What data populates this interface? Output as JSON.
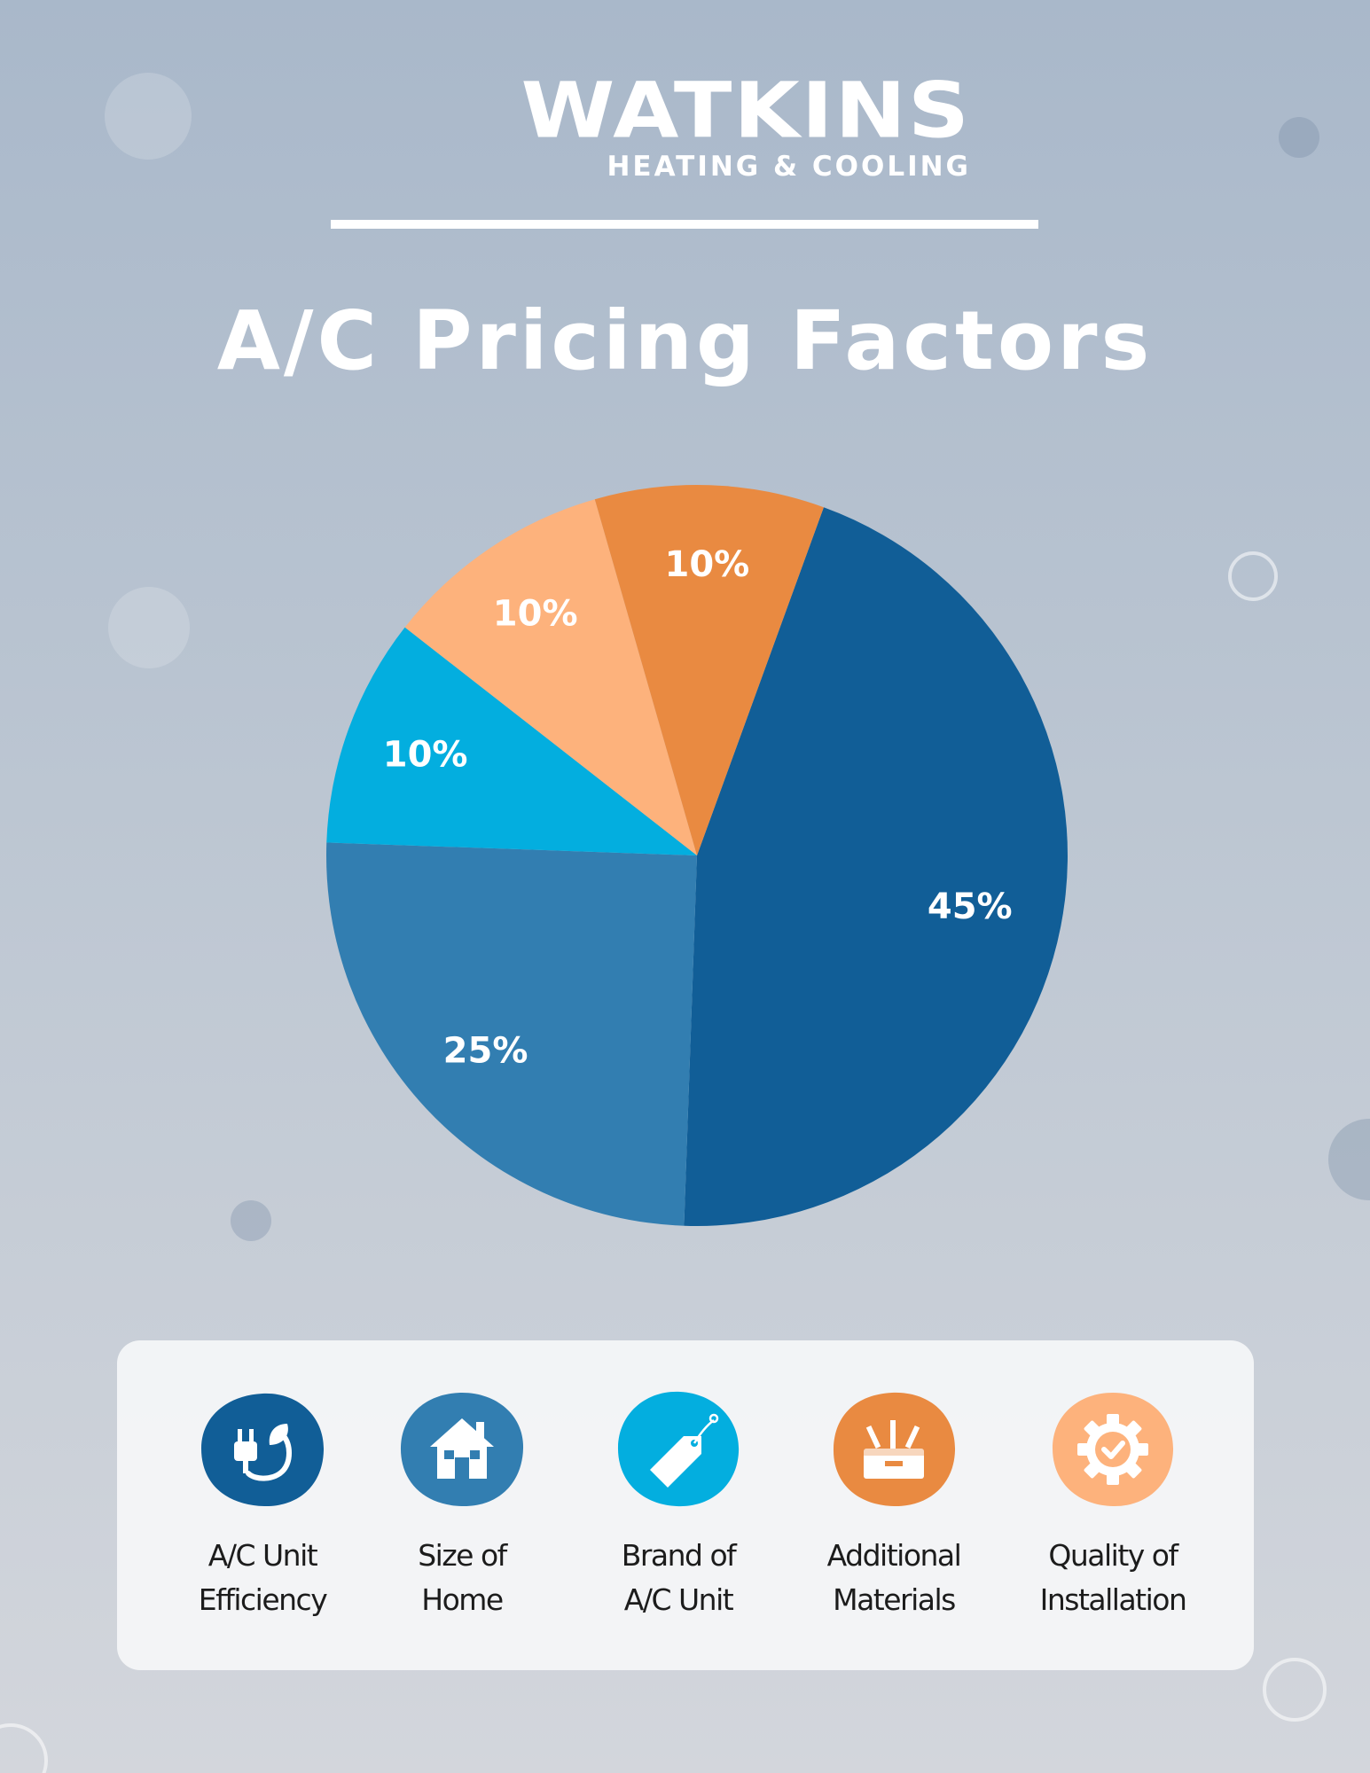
{
  "logo": {
    "name": "WATKINS",
    "tagline": "HEATING & COOLING"
  },
  "title": "A/C Pricing Factors",
  "colors": {
    "dark_blue": "#115e97",
    "mid_blue": "#327eb1",
    "bright_blue": "#03aedf",
    "light_orange": "#fdb27c",
    "orange": "#e98a41"
  },
  "chart_data": {
    "type": "pie",
    "title": "A/C Pricing Factors",
    "legend_position": "bottom",
    "slices": [
      {
        "label": "A/C Unit Efficiency",
        "value": 45,
        "display": "45%",
        "color": "#115e97",
        "icon": "plug-leaf-icon"
      },
      {
        "label": "Size of Home",
        "value": 25,
        "display": "25%",
        "color": "#327eb1",
        "icon": "house-icon"
      },
      {
        "label": "Brand of A/C Unit",
        "value": 10,
        "display": "10%",
        "color": "#03aedf",
        "icon": "price-tag-icon"
      },
      {
        "label": "Quality of Installation",
        "value": 10,
        "display": "10%",
        "color": "#fdb27c",
        "icon": "gear-check-icon"
      },
      {
        "label": "Additional Materials",
        "value": 10,
        "display": "10%",
        "color": "#e98a41",
        "icon": "toolbox-icon"
      }
    ]
  },
  "legend": {
    "items": [
      {
        "line1": "A/C Unit",
        "line2": "Efficiency",
        "icon": "plug-leaf-icon",
        "color": "#115e97"
      },
      {
        "line1": "Size of",
        "line2": "Home",
        "icon": "house-icon",
        "color": "#327eb1"
      },
      {
        "line1": "Brand of",
        "line2": "A/C Unit",
        "icon": "price-tag-icon",
        "color": "#03aedf"
      },
      {
        "line1": "Additional",
        "line2": "Materials",
        "icon": "toolbox-icon",
        "color": "#e98a41"
      },
      {
        "line1": "Quality of",
        "line2": "Installation",
        "icon": "gear-check-icon",
        "color": "#fdb27c"
      }
    ]
  }
}
